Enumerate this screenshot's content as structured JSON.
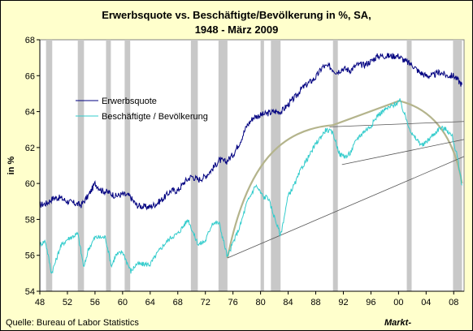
{
  "chart_data": {
    "type": "line",
    "title_line1": "Erwerbsquote vs. Beschäftigte/Bevölkerung in %, SA,",
    "title_line2": "1948 - März 2009",
    "ylabel": "in %",
    "xlabel": "",
    "xlim": [
      1948,
      2009.5
    ],
    "ylim": [
      54,
      68
    ],
    "x_ticks": [
      {
        "v": 1948,
        "label": "48"
      },
      {
        "v": 1952,
        "label": "52"
      },
      {
        "v": 1956,
        "label": "56"
      },
      {
        "v": 1960,
        "label": "60"
      },
      {
        "v": 1964,
        "label": "64"
      },
      {
        "v": 1968,
        "label": "68"
      },
      {
        "v": 1972,
        "label": "72"
      },
      {
        "v": 1976,
        "label": "76"
      },
      {
        "v": 1980,
        "label": "80"
      },
      {
        "v": 1984,
        "label": "84"
      },
      {
        "v": 1988,
        "label": "88"
      },
      {
        "v": 1992,
        "label": "92"
      },
      {
        "v": 1996,
        "label": "96"
      },
      {
        "v": 2000,
        "label": "00"
      },
      {
        "v": 2004,
        "label": "04"
      },
      {
        "v": 2008,
        "label": "08"
      }
    ],
    "y_ticks": [
      54,
      56,
      58,
      60,
      62,
      64,
      66,
      68
    ],
    "grid": false,
    "legend_position": "top-left",
    "recessions": [
      [
        1948.9,
        1949.8
      ],
      [
        1953.5,
        1954.4
      ],
      [
        1957.6,
        1958.3
      ],
      [
        1960.3,
        1961.1
      ],
      [
        1969.9,
        1970.9
      ],
      [
        1973.9,
        1975.2
      ],
      [
        1980.0,
        1980.5
      ],
      [
        1981.5,
        1982.9
      ],
      [
        1990.5,
        1991.2
      ],
      [
        2001.2,
        2001.9
      ],
      [
        2007.9,
        2009.2
      ]
    ],
    "series": [
      {
        "name": "Erwerbsquote",
        "color": "#000080",
        "x": [
          1948,
          1949,
          1950,
          1951,
          1952,
          1953,
          1954,
          1955,
          1956,
          1957,
          1958,
          1959,
          1960,
          1961,
          1962,
          1963,
          1964,
          1965,
          1966,
          1967,
          1968,
          1969,
          1970,
          1971,
          1972,
          1973,
          1974,
          1975,
          1976,
          1977,
          1978,
          1979,
          1980,
          1981,
          1982,
          1983,
          1984,
          1985,
          1986,
          1987,
          1988,
          1989,
          1990,
          1991,
          1992,
          1993,
          1994,
          1995,
          1996,
          1997,
          1998,
          1999,
          2000,
          2001,
          2002,
          2003,
          2004,
          2005,
          2006,
          2007,
          2008,
          2009.2
        ],
        "values": [
          58.8,
          58.9,
          59.2,
          59.2,
          59.0,
          58.9,
          58.8,
          59.3,
          60.0,
          59.6,
          59.5,
          59.3,
          59.4,
          59.3,
          58.8,
          58.7,
          58.7,
          58.9,
          59.2,
          59.6,
          59.6,
          60.1,
          60.4,
          60.2,
          60.4,
          60.8,
          61.3,
          61.2,
          61.6,
          62.3,
          63.2,
          63.7,
          63.8,
          63.9,
          64.0,
          64.0,
          64.4,
          64.8,
          65.3,
          65.6,
          65.9,
          66.5,
          66.5,
          66.2,
          66.4,
          66.3,
          66.6,
          66.6,
          66.8,
          67.1,
          67.1,
          67.1,
          67.1,
          66.8,
          66.6,
          66.2,
          66.0,
          66.0,
          66.2,
          66.0,
          66.0,
          65.5
        ]
      },
      {
        "name": "Beschäftigte / Bevölkerung",
        "color": "#33cccc",
        "x": [
          1948,
          1948.8,
          1949.7,
          1950.5,
          1951,
          1952,
          1953.5,
          1954.4,
          1955,
          1956,
          1957.5,
          1958.4,
          1959,
          1960,
          1961.2,
          1962,
          1963,
          1964,
          1965,
          1966,
          1967,
          1968,
          1969.5,
          1970.5,
          1971,
          1972,
          1973,
          1974,
          1975.2,
          1976,
          1977,
          1978,
          1979.3,
          1980.5,
          1981,
          1982.9,
          1984,
          1985,
          1986,
          1987,
          1988,
          1989.5,
          1990.5,
          1991.5,
          1992.5,
          1993,
          1994,
          1995,
          1996,
          1997,
          1998,
          1999,
          2000.2,
          2001,
          2002,
          2003.5,
          2004,
          2005,
          2006,
          2007,
          2007.8,
          2008.5,
          2009.2
        ],
        "values": [
          56.6,
          56.8,
          55.0,
          55.9,
          56.5,
          56.9,
          57.2,
          55.3,
          56.3,
          57.0,
          57.0,
          55.4,
          56.0,
          56.2,
          55.1,
          55.5,
          55.5,
          55.5,
          56.1,
          56.6,
          57.0,
          57.2,
          58.0,
          57.0,
          56.6,
          56.8,
          57.8,
          57.8,
          55.9,
          56.7,
          57.6,
          58.9,
          59.9,
          59.2,
          59.3,
          57.1,
          59.3,
          60.0,
          60.9,
          61.5,
          62.2,
          63.0,
          62.8,
          61.6,
          61.5,
          61.7,
          62.5,
          62.9,
          63.2,
          63.8,
          64.1,
          64.3,
          64.6,
          63.7,
          62.7,
          62.1,
          62.3,
          62.7,
          63.1,
          63.0,
          62.6,
          61.5,
          59.9
        ]
      }
    ]
  },
  "source_text": "Quelle: Bureau of Labor Statistics",
  "corner_text": "Markt-"
}
